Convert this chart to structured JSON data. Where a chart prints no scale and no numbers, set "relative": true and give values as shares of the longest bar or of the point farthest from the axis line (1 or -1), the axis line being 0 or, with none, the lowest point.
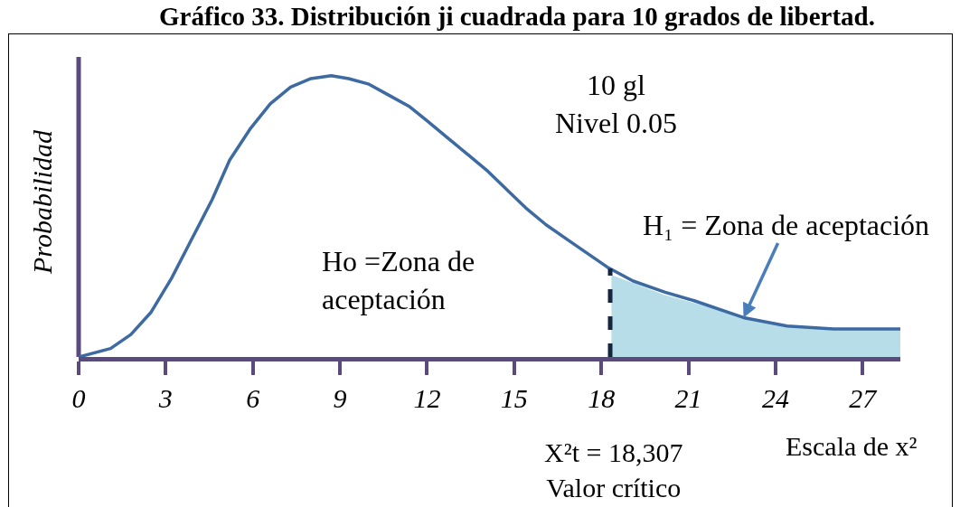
{
  "chart_data": {
    "type": "line",
    "title": "Gráfico 33. Distribución ji cuadrada para 10 grados de libertad.",
    "xlabel": "Escala de x²",
    "ylabel": "Probabilidad",
    "relative": true,
    "xlim": [
      0,
      28.3
    ],
    "xticks": [
      0,
      3,
      6,
      9,
      12,
      15,
      18,
      21,
      24,
      27
    ],
    "series": [
      {
        "type": "area",
        "color": "#b7dde8",
        "x": [
          18.35,
          20.15,
          22.27,
          23.86,
          25.44,
          28.3
        ],
        "values": [
          0.29,
          0.22,
          0.16,
          0.12,
          0.1,
          0.1
        ]
      },
      {
        "color": "#3c6aa1",
        "x": [
          0,
          1.1,
          1.8,
          2.5,
          3.2,
          3.9,
          4.6,
          5.2,
          5.9,
          6.6,
          7.3,
          8.0,
          8.7,
          9.3,
          10.0,
          10.7,
          11.4,
          12.0,
          12.7,
          13.4,
          14.1,
          14.8,
          15.4,
          16.1,
          16.8,
          17.5,
          18.2,
          19.1,
          20.2,
          21.2,
          22.9,
          24.4,
          26.0,
          28.3
        ],
        "values": [
          0,
          0.03,
          0.08,
          0.16,
          0.28,
          0.42,
          0.56,
          0.7,
          0.81,
          0.9,
          0.96,
          0.99,
          1,
          0.99,
          0.97,
          0.93,
          0.89,
          0.84,
          0.78,
          0.72,
          0.66,
          0.59,
          0.53,
          0.47,
          0.42,
          0.37,
          0.32,
          0.27,
          0.23,
          0.2,
          0.14,
          0.11,
          0.1,
          0.1
        ]
      }
    ],
    "ref_lines": [
      {
        "axis": "x",
        "value": 18.307,
        "color": "#17263f",
        "line_style": "dashed"
      }
    ],
    "annotations": [
      "10 gl\nNivel 0.05",
      "Ho =Zona de\naceptación",
      {
        "text": "H₁ = Zona de aceptación",
        "x": 22.9,
        "y": 0.14
      },
      "X²t = 18,307\nValor crítico"
    ]
  }
}
